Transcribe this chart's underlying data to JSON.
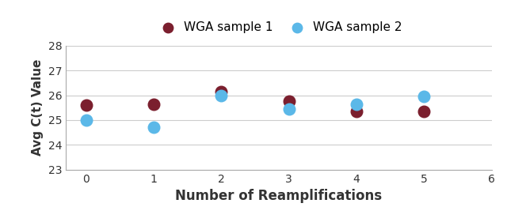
{
  "sample1_x": [
    0,
    1,
    2,
    3,
    4,
    5
  ],
  "sample1_y": [
    25.6,
    25.65,
    26.15,
    25.75,
    25.35,
    25.35
  ],
  "sample2_x": [
    0,
    1,
    2,
    3,
    4,
    5
  ],
  "sample2_y": [
    25.0,
    24.7,
    26.0,
    25.45,
    25.65,
    25.95
  ],
  "sample1_color": "#7B1F2E",
  "sample2_color": "#5BB8E8",
  "marker_size": 110,
  "xlabel": "Number of Reamplifications",
  "ylabel": "Avg C(t) Value",
  "xlim": [
    -0.3,
    6
  ],
  "ylim": [
    23,
    28
  ],
  "yticks": [
    23,
    24,
    25,
    26,
    27,
    28
  ],
  "xticks": [
    0,
    1,
    2,
    3,
    4,
    5,
    6
  ],
  "legend_label1": "WGA sample 1",
  "legend_label2": "WGA sample 2",
  "background_color": "#ffffff",
  "grid_color": "#cccccc",
  "spine_color": "#aaaaaa"
}
